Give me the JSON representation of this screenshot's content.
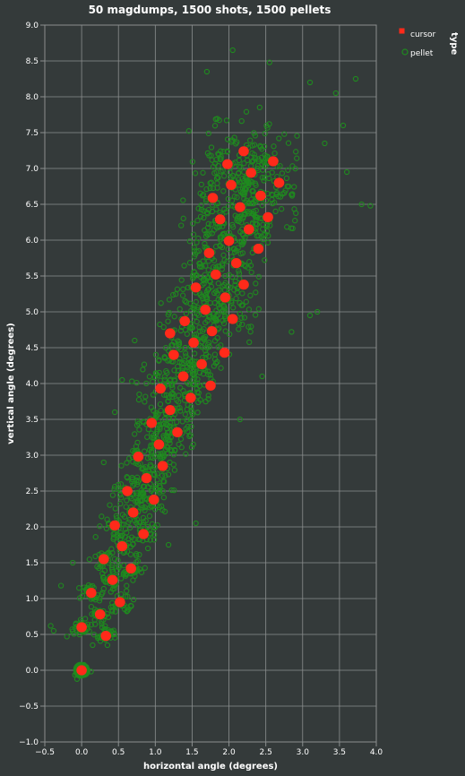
{
  "chart_data": {
    "type": "scatter",
    "title": "50 magdumps, 1500 shots, 1500 pellets",
    "xlabel": "horizontal angle (degrees)",
    "ylabel": "vertical angle (degrees)",
    "xlim": [
      -0.5,
      4.0
    ],
    "ylim": [
      -1.0,
      9.0
    ],
    "x_ticks": [
      "−0.5",
      "0.0",
      "0.5",
      "1.0",
      "1.5",
      "2.0",
      "2.5",
      "3.0",
      "3.5",
      "4.0"
    ],
    "y_ticks": [
      "−1.0",
      "−0.5",
      "0.0",
      "0.5",
      "1.0",
      "1.5",
      "2.0",
      "2.5",
      "3.0",
      "3.5",
      "4.0",
      "4.5",
      "5.0",
      "5.5",
      "6.0",
      "6.5",
      "7.0",
      "7.5",
      "8.0",
      "8.5",
      "9.0"
    ],
    "grid": true,
    "legend": {
      "title": "type",
      "placement": "top-right",
      "entries": [
        {
          "label": "cursor",
          "color": "#ff2a1a"
        },
        {
          "label": "pellet",
          "color": "#1f8a1f"
        }
      ]
    },
    "series": [
      {
        "name": "cursor",
        "color": "#ff2a1a",
        "points": [
          [
            0.0,
            0.0
          ],
          [
            0.0,
            0.6
          ],
          [
            0.33,
            0.48
          ],
          [
            0.25,
            0.78
          ],
          [
            0.13,
            1.08
          ],
          [
            0.52,
            0.95
          ],
          [
            0.3,
            1.55
          ],
          [
            0.42,
            1.26
          ],
          [
            0.67,
            1.42
          ],
          [
            0.55,
            1.73
          ],
          [
            0.84,
            1.9
          ],
          [
            0.7,
            2.2
          ],
          [
            0.62,
            2.5
          ],
          [
            0.98,
            2.38
          ],
          [
            0.45,
            2.02
          ],
          [
            0.88,
            2.68
          ],
          [
            1.1,
            2.85
          ],
          [
            0.77,
            2.98
          ],
          [
            1.05,
            3.15
          ],
          [
            1.3,
            3.32
          ],
          [
            0.95,
            3.45
          ],
          [
            1.2,
            3.63
          ],
          [
            1.48,
            3.8
          ],
          [
            1.07,
            3.93
          ],
          [
            1.38,
            4.1
          ],
          [
            1.63,
            4.27
          ],
          [
            1.25,
            4.4
          ],
          [
            1.52,
            4.57
          ],
          [
            1.77,
            4.73
          ],
          [
            1.4,
            4.87
          ],
          [
            1.68,
            5.03
          ],
          [
            2.05,
            4.9
          ],
          [
            1.95,
            5.2
          ],
          [
            1.55,
            5.34
          ],
          [
            1.82,
            5.52
          ],
          [
            2.1,
            5.68
          ],
          [
            1.73,
            5.82
          ],
          [
            2.0,
            5.99
          ],
          [
            2.27,
            6.15
          ],
          [
            1.88,
            6.29
          ],
          [
            2.15,
            6.46
          ],
          [
            2.53,
            6.32
          ],
          [
            2.43,
            6.62
          ],
          [
            2.03,
            6.77
          ],
          [
            2.68,
            6.8
          ],
          [
            2.3,
            6.94
          ],
          [
            1.98,
            7.06
          ],
          [
            2.6,
            7.1
          ],
          [
            2.2,
            7.24
          ],
          [
            1.78,
            6.59
          ],
          [
            2.2,
            5.38
          ],
          [
            1.94,
            4.43
          ],
          [
            1.2,
            4.7
          ],
          [
            1.75,
            3.97
          ],
          [
            2.4,
            5.88
          ]
        ]
      },
      {
        "name": "pellet",
        "color": "#1f8a1f",
        "anchors": [
          [
            0.0,
            0.0
          ],
          [
            0.0,
            0.6
          ],
          [
            0.33,
            0.48
          ],
          [
            0.25,
            0.78
          ],
          [
            0.13,
            1.08
          ],
          [
            0.52,
            0.95
          ],
          [
            0.3,
            1.55
          ],
          [
            0.42,
            1.26
          ],
          [
            0.67,
            1.42
          ],
          [
            0.55,
            1.73
          ],
          [
            0.84,
            1.9
          ],
          [
            0.7,
            2.2
          ],
          [
            0.62,
            2.5
          ],
          [
            0.98,
            2.38
          ],
          [
            0.45,
            2.02
          ],
          [
            0.88,
            2.68
          ],
          [
            1.1,
            2.85
          ],
          [
            0.77,
            2.98
          ],
          [
            1.05,
            3.15
          ],
          [
            1.3,
            3.32
          ],
          [
            0.95,
            3.45
          ],
          [
            1.2,
            3.63
          ],
          [
            1.48,
            3.8
          ],
          [
            1.07,
            3.93
          ],
          [
            1.38,
            4.1
          ],
          [
            1.63,
            4.27
          ],
          [
            1.25,
            4.4
          ],
          [
            1.52,
            4.57
          ],
          [
            1.77,
            4.73
          ],
          [
            1.4,
            4.87
          ],
          [
            1.68,
            5.03
          ],
          [
            2.05,
            4.9
          ],
          [
            1.95,
            5.2
          ],
          [
            1.55,
            5.34
          ],
          [
            1.82,
            5.52
          ],
          [
            2.1,
            5.68
          ],
          [
            1.73,
            5.82
          ],
          [
            2.0,
            5.99
          ],
          [
            2.27,
            6.15
          ],
          [
            1.88,
            6.29
          ],
          [
            2.15,
            6.46
          ],
          [
            2.53,
            6.32
          ],
          [
            2.43,
            6.62
          ],
          [
            2.03,
            6.77
          ],
          [
            2.68,
            6.8
          ],
          [
            2.3,
            6.94
          ],
          [
            1.98,
            7.06
          ],
          [
            2.6,
            7.1
          ],
          [
            2.2,
            7.24
          ],
          [
            1.78,
            6.59
          ]
        ],
        "per_anchor_count": 30,
        "spread_x": [
          0.12,
          0.55
        ],
        "spread_y": [
          0.1,
          0.7
        ],
        "outliers": [
          [
            3.8,
            6.5
          ],
          [
            3.92,
            6.48
          ],
          [
            3.72,
            8.25
          ],
          [
            3.55,
            7.6
          ],
          [
            3.45,
            8.05
          ],
          [
            3.1,
            8.2
          ],
          [
            2.55,
            8.48
          ],
          [
            2.05,
            8.65
          ],
          [
            1.7,
            8.35
          ],
          [
            3.3,
            7.35
          ],
          [
            3.6,
            6.95
          ],
          [
            -0.42,
            0.62
          ],
          [
            -0.38,
            0.55
          ],
          [
            -0.2,
            0.47
          ],
          [
            -0.28,
            1.18
          ],
          [
            -0.12,
            1.5
          ],
          [
            0.35,
            0.35
          ],
          [
            0.15,
            0.35
          ],
          [
            2.15,
            3.5
          ],
          [
            2.45,
            4.1
          ],
          [
            2.85,
            4.72
          ],
          [
            3.2,
            5.0
          ],
          [
            3.1,
            4.95
          ],
          [
            0.9,
            1.7
          ],
          [
            1.55,
            2.05
          ],
          [
            1.18,
            1.75
          ],
          [
            0.3,
            2.9
          ],
          [
            0.45,
            3.6
          ],
          [
            0.55,
            4.05
          ],
          [
            0.72,
            4.6
          ]
        ]
      }
    ]
  }
}
